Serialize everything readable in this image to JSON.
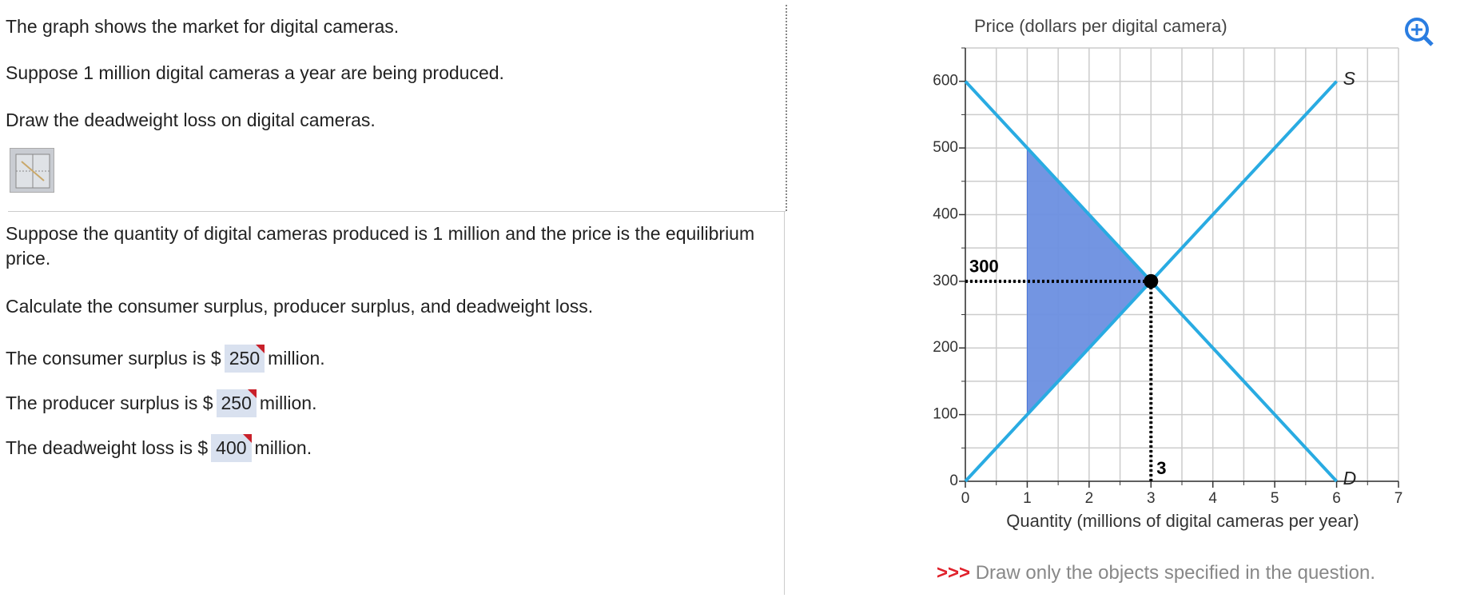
{
  "question": {
    "paragraphs": [
      "The graph shows the market for digital cameras.",
      "Suppose 1 million digital cameras a year are being produced.",
      "Draw the deadweight loss on digital cameras.",
      "Suppose the quantity of digital cameras produced is 1 million and the price is the equilibrium price.",
      "Calculate the consumer surplus, producer surplus, and deadweight loss."
    ]
  },
  "answers": [
    {
      "prefix": "The consumer surplus is $",
      "value": 250,
      "suffix": "million."
    },
    {
      "prefix": "The producer surplus is $",
      "value": 250,
      "suffix": "million."
    },
    {
      "prefix": "The deadweight loss is $",
      "value": 400,
      "suffix": "million."
    }
  ],
  "instruction": {
    "marker": ">>>",
    "text": "Draw only the objects specified in the question."
  },
  "chart_data": {
    "type": "line",
    "y_label": "Price (dollars per digital camera)",
    "x_label": "Quantity (millions of digital cameras per year)",
    "xlim": [
      0,
      7
    ],
    "ylim": [
      0,
      650
    ],
    "xticks": [
      0,
      1,
      2,
      3,
      4,
      5,
      6,
      7
    ],
    "yticks": [
      0,
      100,
      200,
      300,
      400,
      500,
      600
    ],
    "xminorticks": [
      0.5,
      1.5,
      2.5,
      3.5,
      4.5,
      5.5,
      6.5
    ],
    "yminorticks": [
      50,
      150,
      250,
      350,
      450,
      550,
      650
    ],
    "grid": true,
    "series": [
      {
        "name": "S",
        "color": "#29abe2",
        "x": [
          0,
          6
        ],
        "y": [
          0,
          600
        ]
      },
      {
        "name": "D",
        "color": "#29abe2",
        "x": [
          0,
          6
        ],
        "y": [
          600,
          0
        ]
      }
    ],
    "shaded_area": {
      "color": "#6b8fe0",
      "x": [
        1,
        3,
        1
      ],
      "y": [
        500,
        300,
        100
      ]
    },
    "equilibrium": {
      "x": 3,
      "y": 300
    }
  }
}
